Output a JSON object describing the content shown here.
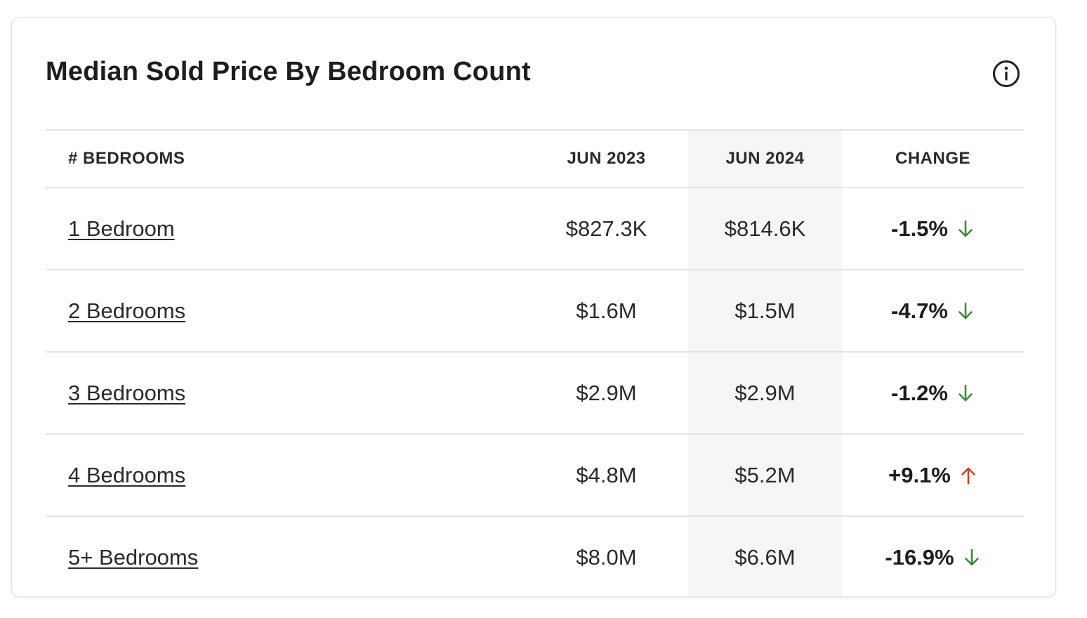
{
  "card": {
    "title": "Median Sold Price By Bedroom Count",
    "info_icon": "info-circle-icon"
  },
  "table": {
    "headers": {
      "bedrooms": "# BEDROOMS",
      "prev": "JUN 2023",
      "cur": "JUN 2024",
      "change": "CHANGE"
    },
    "rows": [
      {
        "label": "1 Bedroom",
        "prev": "$827.3K",
        "cur": "$814.6K",
        "change": "-1.5%",
        "direction": "down"
      },
      {
        "label": "2 Bedrooms",
        "prev": "$1.6M",
        "cur": "$1.5M",
        "change": "-4.7%",
        "direction": "down"
      },
      {
        "label": "3 Bedrooms",
        "prev": "$2.9M",
        "cur": "$2.9M",
        "change": "-1.2%",
        "direction": "down"
      },
      {
        "label": "4 Bedrooms",
        "prev": "$4.8M",
        "cur": "$5.2M",
        "change": "+9.1%",
        "direction": "up"
      },
      {
        "label": "5+ Bedrooms",
        "prev": "$8.0M",
        "cur": "$6.6M",
        "change": "-16.9%",
        "direction": "down"
      }
    ]
  },
  "colors": {
    "down_arrow": "#3b8a3e",
    "up_arrow": "#c8441b",
    "highlight_column": "#f6f6f6",
    "divider": "#e3e3e3"
  }
}
